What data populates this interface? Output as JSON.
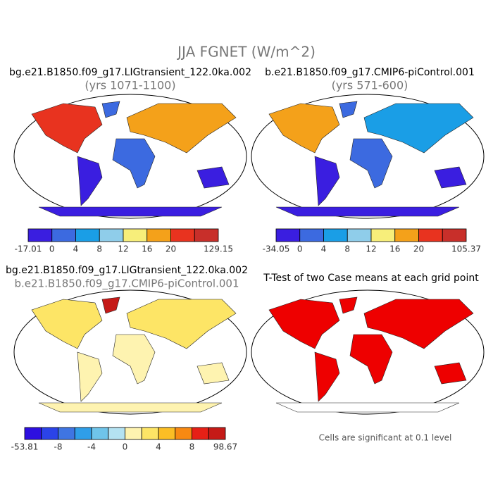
{
  "title": "JJA FGNET (W/m^2)",
  "panels": [
    {
      "title": "bg.e21.B1850.f09_g17.LIGtransient_122.0ka.002",
      "subtitle": "(yrs 1071-1100)",
      "colorbar": {
        "colors": [
          "#3a1ee0",
          "#3c6ae0",
          "#1a9ee6",
          "#8fcdea",
          "#f7ee7a",
          "#f4a11a",
          "#e8331f",
          "#c82f2a"
        ],
        "labels": [
          "-17.01",
          "0",
          "4",
          "8",
          "12",
          "16",
          "20",
          "129.15"
        ]
      }
    },
    {
      "title": "b.e21.B1850.f09_g17.CMIP6-piControl.001",
      "subtitle": "(yrs 571-600)",
      "colorbar": {
        "colors": [
          "#3a1ee0",
          "#3c6ae0",
          "#1a9ee6",
          "#8fcdea",
          "#f7ee7a",
          "#f4a11a",
          "#e8331f",
          "#c82f2a"
        ],
        "labels": [
          "-34.05",
          "0",
          "4",
          "8",
          "12",
          "16",
          "20",
          "105.37"
        ]
      }
    },
    {
      "title": "bg.e21.B1850.f09_g17.LIGtransient_122.0ka.002",
      "subtitle": "b.e21.B1850.f09_g17.CMIP6-piControl.001",
      "colorbar": {
        "colors": [
          "#2d0fe0",
          "#2b43e8",
          "#3f75e2",
          "#2f9ee8",
          "#6fc4ea",
          "#b4e2f2",
          "#fef3b0",
          "#fde566",
          "#fbbe25",
          "#f88912",
          "#e62016",
          "#c51a17"
        ],
        "labels": [
          "-53.81",
          "-8",
          "-4",
          "0",
          "4",
          "8",
          "98.67"
        ]
      }
    },
    {
      "title": "T-Test of two Case means at each grid point",
      "note": "Cells are significant at 0.1 level"
    }
  ]
}
